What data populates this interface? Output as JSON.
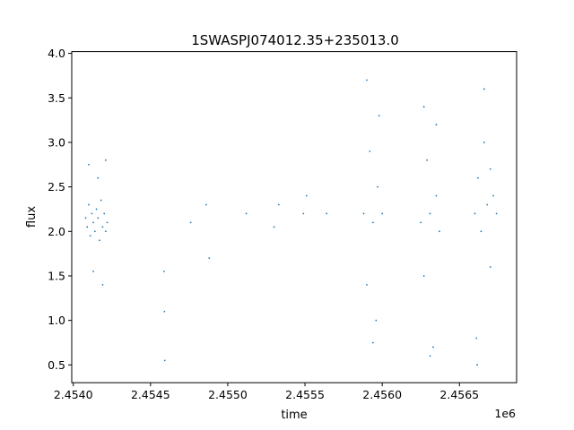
{
  "chart_data": {
    "type": "scatter",
    "title": "1SWASPJ074012.35+235013.0",
    "xlabel": "time",
    "ylabel": "flux",
    "x_offset_label": "1e6",
    "xlim": [
      2453990,
      2456870
    ],
    "ylim": [
      0.3,
      4.02
    ],
    "x_ticks": [
      2454000,
      2454500,
      2455000,
      2455500,
      2456000,
      2456500
    ],
    "x_tick_labels": [
      "2.4540",
      "2.4545",
      "2.4550",
      "2.4555",
      "2.4560",
      "2.4565"
    ],
    "y_ticks": [
      0.5,
      1.0,
      1.5,
      2.0,
      2.5,
      3.0,
      3.5,
      4.0
    ],
    "y_tick_labels": [
      "0.5",
      "1.0",
      "1.5",
      "2.0",
      "2.5",
      "3.0",
      "3.5",
      "4.0"
    ],
    "grid": false,
    "marker_color": "#1f77b4",
    "series": [
      {
        "x": [
          2454080,
          2454090,
          2454100,
          2454110,
          2454120,
          2454130,
          2454140,
          2454150,
          2454160,
          2454170,
          2454180,
          2454190,
          2454200,
          2454210,
          2454220,
          2454100,
          2454130,
          2454160,
          2454190,
          2454210,
          2454588,
          2454590,
          2454592,
          2454760,
          2454860,
          2454880,
          2455120,
          2455300,
          2455330,
          2455490,
          2455510,
          2455640,
          2455880,
          2455900,
          2455920,
          2455940,
          2455960,
          2455980,
          2456000,
          2455900,
          2455940,
          2455970,
          2456250,
          2456270,
          2456290,
          2456310,
          2456330,
          2456350,
          2456370,
          2456270,
          2456310,
          2456350,
          2456600,
          2456610,
          2456620,
          2456640,
          2456660,
          2456680,
          2456700,
          2456720,
          2456740,
          2456615,
          2456660,
          2456700
        ],
        "y": [
          2.15,
          2.05,
          2.3,
          1.95,
          2.2,
          2.1,
          2.0,
          2.25,
          2.15,
          1.9,
          2.35,
          2.05,
          2.2,
          2.0,
          2.1,
          2.75,
          1.55,
          2.6,
          1.4,
          2.8,
          1.55,
          1.1,
          0.55,
          2.1,
          2.3,
          1.7,
          2.2,
          2.05,
          2.3,
          2.2,
          2.4,
          2.2,
          2.2,
          1.4,
          2.9,
          2.1,
          1.0,
          3.3,
          2.2,
          3.7,
          0.75,
          2.5,
          2.1,
          1.5,
          2.8,
          2.2,
          0.7,
          3.2,
          2.0,
          3.4,
          0.6,
          2.4,
          2.2,
          0.8,
          2.6,
          2.0,
          3.0,
          2.3,
          1.6,
          2.4,
          2.2,
          0.5,
          3.6,
          2.7
        ]
      }
    ]
  }
}
